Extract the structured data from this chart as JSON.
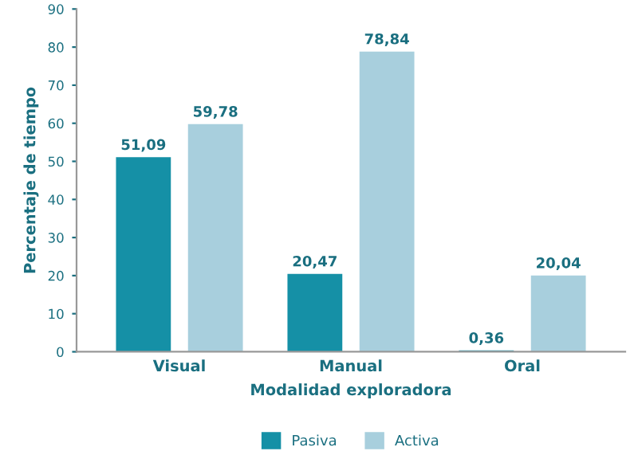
{
  "chart_data": {
    "type": "bar",
    "categories": [
      "Visual",
      "Manual",
      "Oral"
    ],
    "series": [
      {
        "name": "Pasiva",
        "color": "#1590a6",
        "values": [
          51.09,
          20.47,
          0.36
        ],
        "value_labels": [
          "51,09",
          "20,47",
          "0,36"
        ]
      },
      {
        "name": "Activa",
        "color": "#a8cfdd",
        "values": [
          59.78,
          78.84,
          20.04
        ],
        "value_labels": [
          "59,78",
          "78,84",
          "20,04"
        ]
      }
    ],
    "xlabel": "Modalidad exploradora",
    "ylabel": "Percentaje de tiempo",
    "ylim": [
      0,
      90
    ],
    "yticks": [
      0,
      10,
      20,
      30,
      40,
      50,
      60,
      70,
      80,
      90
    ],
    "grid": false,
    "legend": "bottom"
  }
}
